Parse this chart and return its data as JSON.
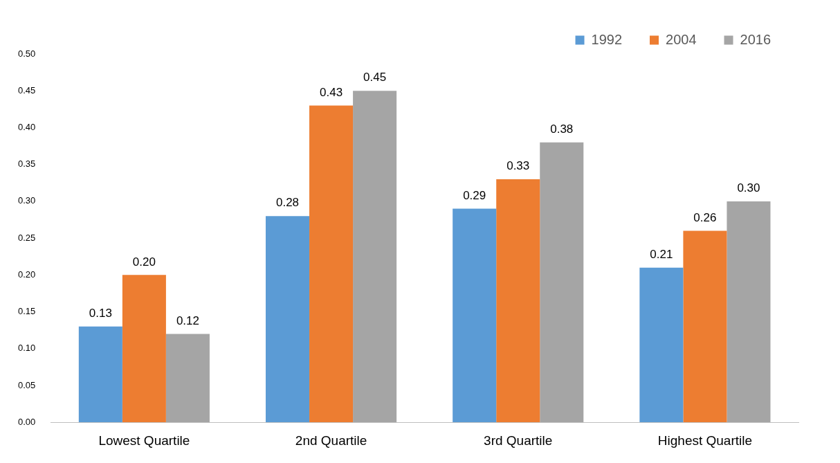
{
  "chart_data": {
    "type": "bar",
    "categories": [
      "Lowest Quartile",
      "2nd Quartile",
      "3rd Quartile",
      "Highest Quartile"
    ],
    "series": [
      {
        "name": "1992",
        "color": "#5b9bd5",
        "values": [
          0.13,
          0.28,
          0.29,
          0.21
        ],
        "value_labels": [
          "0.13",
          "0.28",
          "0.29",
          "0.21"
        ]
      },
      {
        "name": "2004",
        "color": "#ed7d31",
        "values": [
          0.2,
          0.43,
          0.33,
          0.26
        ],
        "value_labels": [
          "0.20",
          "0.43",
          "0.33",
          "0.26"
        ]
      },
      {
        "name": "2016",
        "color": "#a5a5a5",
        "values": [
          0.12,
          0.45,
          0.38,
          0.3
        ],
        "value_labels": [
          "0.12",
          "0.45",
          "0.38",
          "0.30"
        ]
      }
    ],
    "ylim": [
      0,
      0.5
    ],
    "yticks": [
      {
        "value": 0,
        "label": "0.00"
      },
      {
        "value": 0.05,
        "label": "0.05"
      },
      {
        "value": 0.1,
        "label": "0.10"
      },
      {
        "value": 0.15,
        "label": "0.15"
      },
      {
        "value": 0.2,
        "label": "0.20"
      },
      {
        "value": 0.25,
        "label": "0.25"
      },
      {
        "value": 0.3,
        "label": "0.30"
      },
      {
        "value": 0.35,
        "label": "0.35"
      },
      {
        "value": 0.4,
        "label": "0.40"
      },
      {
        "value": 0.45,
        "label": "0.45"
      },
      {
        "value": 0.5,
        "label": "0.50"
      }
    ],
    "grid": false,
    "legend": "top right"
  }
}
